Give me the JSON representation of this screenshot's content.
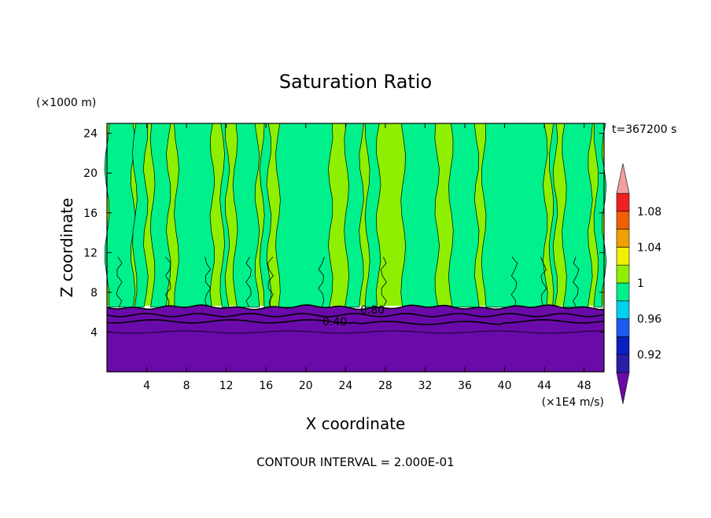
{
  "chart_data": {
    "type": "heatmap",
    "title": "Saturation Ratio",
    "xlabel": "X coordinate",
    "ylabel": "Z coordinate",
    "x_unit": "(×1E4 m/s)",
    "y_unit": "(×1000 m)",
    "time_label": "t=367200 s",
    "footer": "CONTOUR INTERVAL = 2.000E-01",
    "xlim": [
      0,
      50
    ],
    "ylim": [
      0,
      25
    ],
    "x_ticks": [
      4,
      8,
      12,
      16,
      20,
      24,
      28,
      32,
      36,
      40,
      44,
      48
    ],
    "y_ticks": [
      4,
      8,
      12,
      16,
      20,
      24
    ],
    "contour_labels": [
      "0.40",
      "0.80"
    ],
    "colorbar": {
      "labels": [
        "1.08",
        "1.04",
        "1",
        "0.96",
        "0.92"
      ],
      "levels": [
        0.92,
        0.94,
        0.96,
        0.98,
        1.0,
        1.02,
        1.04,
        1.06,
        1.08
      ],
      "colors": [
        "#6a0aa8",
        "#2a1ea8",
        "#0a1fbf",
        "#1e5af0",
        "#00d0f0",
        "#00f08c",
        "#8ef000",
        "#f0f000",
        "#f0a000",
        "#f06000",
        "#f02020",
        "#f0a0a0"
      ]
    },
    "cloud_base_km": 6.5,
    "colors": {
      "green_high": "#00f08c",
      "lime": "#8ef000",
      "purple": "#6a0aa8"
    }
  }
}
